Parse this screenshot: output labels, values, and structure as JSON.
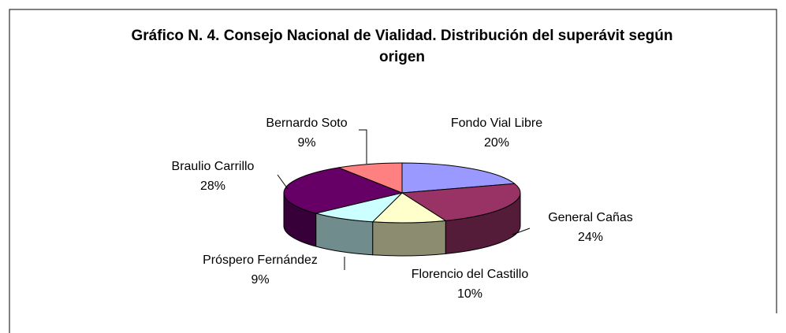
{
  "chart_data": {
    "type": "pie",
    "title": "Gráfico N. 4. Consejo Nacional de Vialidad. Distribución del superávit según origen",
    "categories": [
      "Fondo Vial Libre",
      "General Cañas",
      "Florencio del Castillo",
      "Próspero Fernández",
      "Braulio Carrillo",
      "Bernardo Soto"
    ],
    "values": [
      20,
      24,
      10,
      9,
      28,
      9
    ],
    "value_labels": [
      "20%",
      "24%",
      "10%",
      "9%",
      "28%",
      "9%"
    ],
    "colors": [
      "#9999ff",
      "#993366",
      "#ffffcc",
      "#ccffff",
      "#660066",
      "#ff8080"
    ]
  }
}
